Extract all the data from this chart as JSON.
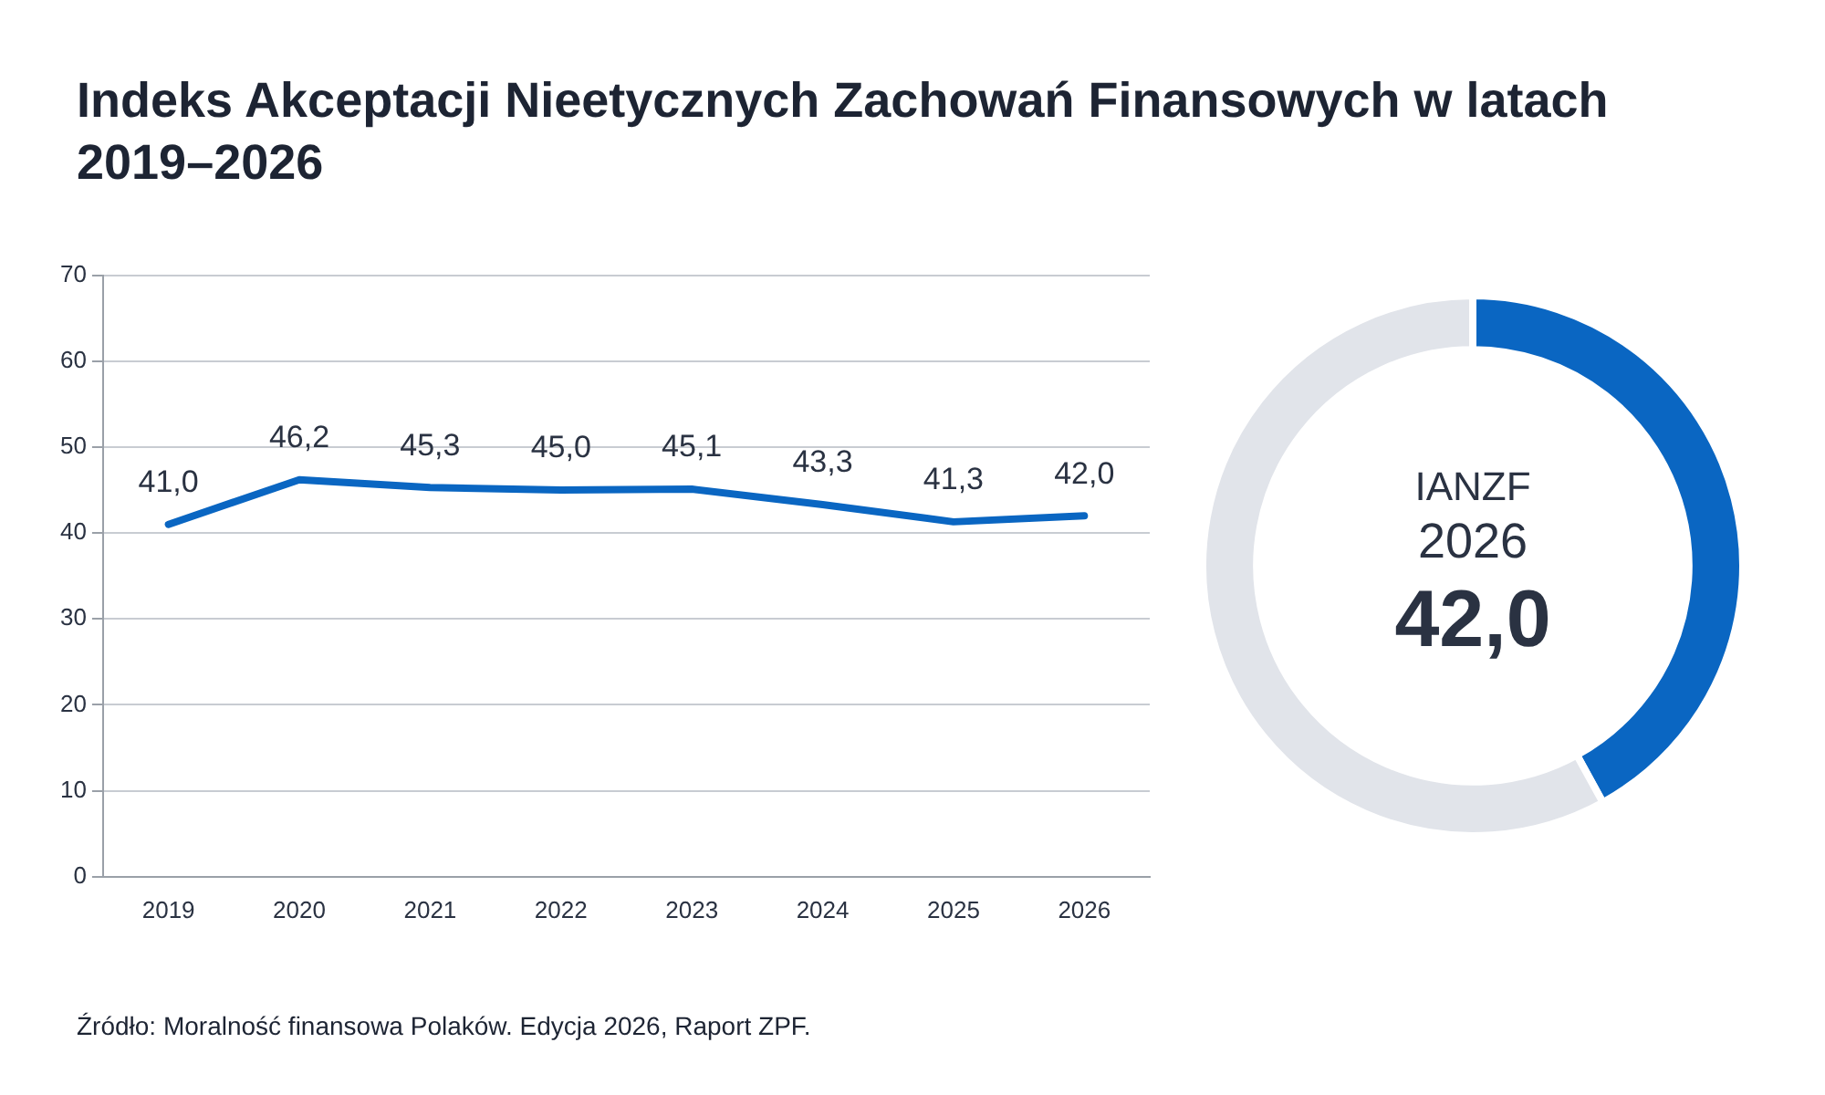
{
  "chart_data": [
    {
      "type": "line",
      "title": "Indeks Akceptacji Nieetycznych Zachowań Finansowych w latach 2019–2026",
      "categories": [
        "2019",
        "2020",
        "2021",
        "2022",
        "2023",
        "2024",
        "2025",
        "2026"
      ],
      "series": [
        {
          "color": "#0a66c2",
          "values": [
            41.0,
            46.2,
            45.3,
            45.0,
            45.1,
            43.3,
            41.3,
            42.0
          ],
          "value_labels": [
            "41,0",
            "46,2",
            "45,3",
            "45,0",
            "45,1",
            "43,3",
            "41,3",
            "42,0"
          ]
        }
      ],
      "ylim": [
        0,
        70
      ],
      "yticks": [
        0,
        10,
        20,
        30,
        40,
        50,
        60,
        70
      ],
      "grid": "y",
      "marker": "none",
      "line_style": "solid",
      "legend": false,
      "annotations": [
        "Źródło: Moralność finansowa Polaków. Edycja 2026, Raport ZPF."
      ]
    },
    {
      "type": "donut",
      "categories": [
        null,
        null
      ],
      "values": [
        42.0,
        58.0
      ],
      "colors": [
        "#0a66c2",
        "#e1e4ea"
      ],
      "legend": false,
      "annotations": [
        "IANZF",
        "2026",
        "42,0"
      ]
    }
  ]
}
